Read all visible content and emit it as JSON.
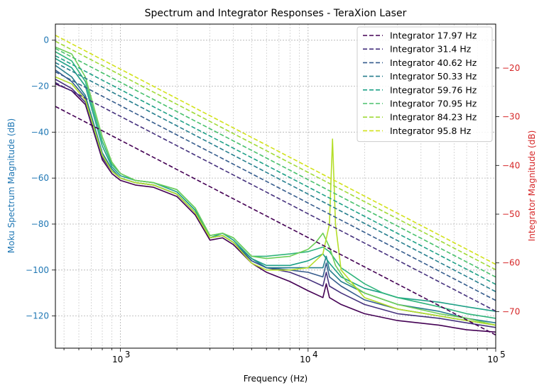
{
  "chart_data": {
    "type": "line",
    "title": "Spectrum and Integrator Responses - TeraXion Laser",
    "xlabel": "Frequency (Hz)",
    "ylabel_left": "Moku Spectrum Magnitude (dB)",
    "ylabel_right": "Integrator Magnitude (dB)",
    "x_scale": "log",
    "xlim": [
      450,
      100000
    ],
    "ylim_left": [
      -134,
      7
    ],
    "ylim_right": [
      -77.5,
      -11
    ],
    "x_tick_labels": [
      "10",
      "10",
      "10"
    ],
    "x_tick_exponents": [
      "3",
      "4",
      "5"
    ],
    "x_tick_values": [
      1000,
      10000,
      100000
    ],
    "y_left_ticks": [
      0,
      -20,
      -40,
      -60,
      -80,
      -100,
      -120
    ],
    "y_left_tick_labels": [
      "0",
      "−20",
      "−40",
      "−60",
      "−80",
      "−100",
      "−120"
    ],
    "y_right_ticks": [
      -20,
      -30,
      -40,
      -50,
      -60,
      -70
    ],
    "y_right_tick_labels": [
      "−20",
      "−30",
      "−40",
      "−50",
      "−60",
      "−70"
    ],
    "grid": true,
    "legend_position": "top-right",
    "colors": {
      "left_axis": "#1f77b4",
      "right_axis": "#d62728"
    },
    "integrator_series": [
      {
        "name": "Integrator 17.97 Hz",
        "color": "#440154",
        "x": [
          450,
          100000
        ],
        "y_db_right": [
          -27.9,
          -74.8
        ]
      },
      {
        "name": "Integrator 31.4 Hz",
        "color": "#46327e",
        "x": [
          450,
          100000
        ],
        "y_db_right": [
          -23.0,
          -69.9
        ]
      },
      {
        "name": "Integrator 40.62 Hz",
        "color": "#365c8d",
        "x": [
          450,
          100000
        ],
        "y_db_right": [
          -20.8,
          -67.7
        ]
      },
      {
        "name": "Integrator 50.33 Hz",
        "color": "#277f8e",
        "x": [
          450,
          100000
        ],
        "y_db_right": [
          -18.9,
          -65.9
        ]
      },
      {
        "name": "Integrator 59.76 Hz",
        "color": "#1fa187",
        "x": [
          450,
          100000
        ],
        "y_db_right": [
          -17.5,
          -64.4
        ]
      },
      {
        "name": "Integrator 70.95 Hz",
        "color": "#4ac16d",
        "x": [
          450,
          100000
        ],
        "y_db_right": [
          -16.0,
          -62.9
        ]
      },
      {
        "name": "Integrator 84.23 Hz",
        "color": "#a0da39",
        "x": [
          450,
          100000
        ],
        "y_db_right": [
          -14.5,
          -61.4
        ]
      },
      {
        "name": "Integrator 95.8 Hz",
        "color": "#d2e21b",
        "x": [
          450,
          100000
        ],
        "y_db_right": [
          -13.3,
          -60.3
        ]
      }
    ],
    "spectrum_series": [
      {
        "color": "#440154",
        "x": [
          450,
          550,
          650,
          800,
          900,
          1000,
          1200,
          1500,
          2000,
          2500,
          3000,
          3500,
          4000,
          5000,
          6000,
          8000,
          10000,
          12000,
          12500,
          13000,
          15000,
          20000,
          30000,
          50000,
          70000,
          100000
        ],
        "y": [
          -19,
          -22,
          -28,
          -52,
          -58,
          -61,
          -63,
          -64,
          -68,
          -76,
          -87,
          -86,
          -89,
          -97,
          -101,
          -105,
          -109,
          -112,
          -106,
          -112,
          -115,
          -119,
          -122,
          -124,
          -126,
          -127
        ]
      },
      {
        "color": "#46327e",
        "x": [
          450,
          550,
          650,
          800,
          900,
          1000,
          1200,
          1500,
          2000,
          2500,
          3000,
          3500,
          4000,
          5000,
          6000,
          8000,
          10000,
          12000,
          12500,
          13000,
          15000,
          20000,
          30000,
          50000,
          70000,
          100000
        ],
        "y": [
          -17,
          -21,
          -27,
          -51,
          -57,
          -60,
          -62,
          -63,
          -67,
          -75,
          -86,
          -85,
          -88,
          -96,
          -99,
          -101,
          -104,
          -107,
          -101,
          -107,
          -110,
          -115,
          -119,
          -121,
          -123,
          -125
        ]
      },
      {
        "color": "#365c8d",
        "x": [
          450,
          550,
          650,
          800,
          900,
          1000,
          1200,
          1500,
          2000,
          2500,
          3000,
          3500,
          4000,
          5000,
          6000,
          8000,
          10000,
          12000,
          12500,
          13000,
          15000,
          20000,
          30000,
          50000,
          70000,
          100000
        ],
        "y": [
          -13,
          -18,
          -25,
          -50,
          -57,
          -60,
          -62,
          -63,
          -67,
          -75,
          -86,
          -85,
          -88,
          -96,
          -99,
          -100,
          -101,
          -103,
          -97,
          -103,
          -107,
          -113,
          -117,
          -120,
          -122,
          -124
        ]
      },
      {
        "color": "#277f8e",
        "x": [
          450,
          550,
          650,
          800,
          900,
          1000,
          1200,
          1500,
          2000,
          2500,
          3000,
          3500,
          4000,
          5000,
          6000,
          8000,
          10000,
          12000,
          12500,
          13000,
          15000,
          20000,
          30000,
          50000,
          70000,
          100000
        ],
        "y": [
          -11,
          -16,
          -24,
          -49,
          -56,
          -60,
          -62,
          -63,
          -67,
          -75,
          -86,
          -85,
          -88,
          -95,
          -99,
          -99,
          -99,
          -99,
          -94,
          -100,
          -105,
          -110,
          -115,
          -118,
          -121,
          -123
        ]
      },
      {
        "color": "#1fa187",
        "x": [
          450,
          550,
          650,
          800,
          900,
          1000,
          1200,
          1500,
          2000,
          2500,
          3000,
          3500,
          4000,
          5000,
          6000,
          8000,
          10000,
          12000,
          13000,
          15000,
          20000,
          25000,
          30000,
          50000,
          70000,
          100000
        ],
        "y": [
          -8,
          -12,
          -20,
          -46,
          -55,
          -59,
          -61,
          -62,
          -66,
          -74,
          -86,
          -84,
          -87,
          -95,
          -98,
          -98,
          -96,
          -93,
          -97,
          -103,
          -108,
          -110,
          -112,
          -114,
          -116,
          -118
        ]
      },
      {
        "color": "#2fb47c",
        "x": [
          450,
          550,
          650,
          800,
          900,
          1000,
          1200,
          1500,
          2000,
          2500,
          3000,
          3500,
          4000,
          5000,
          6000,
          8000,
          10000,
          12000,
          13000,
          15000,
          20000,
          25000,
          30000,
          50000,
          70000,
          100000
        ],
        "y": [
          -5,
          -9,
          -18,
          -44,
          -54,
          -58,
          -61,
          -62,
          -65,
          -73,
          -85,
          -84,
          -86,
          -94,
          -94,
          -93,
          -92,
          -90,
          -92,
          -99,
          -106,
          -110,
          -112,
          -116,
          -119,
          -121
        ]
      },
      {
        "color": "#6ece58",
        "x": [
          450,
          550,
          650,
          800,
          900,
          1000,
          1200,
          1500,
          2000,
          2500,
          3000,
          3500,
          4000,
          5000,
          6000,
          8000,
          10000,
          11000,
          12000,
          13000,
          14000,
          16000,
          20000,
          30000,
          50000,
          70000,
          100000
        ],
        "y": [
          -3,
          -6,
          -16,
          -42,
          -53,
          -58,
          -61,
          -62,
          -65,
          -73,
          -85,
          -84,
          -86,
          -94,
          -95,
          -94,
          -91,
          -88,
          -84,
          -90,
          -98,
          -105,
          -110,
          -115,
          -119,
          -121,
          -124
        ]
      },
      {
        "color": "#b5de2b",
        "x": [
          450,
          550,
          650,
          800,
          900,
          1000,
          1200,
          1500,
          2000,
          2500,
          3000,
          3500,
          4000,
          5000,
          6000,
          8000,
          10000,
          12000,
          13000,
          13500,
          14000,
          15000,
          20000,
          30000,
          50000,
          70000,
          100000
        ],
        "y": [
          -16,
          -19,
          -26,
          -50,
          -57,
          -60,
          -62,
          -63,
          -67,
          -75,
          -86,
          -85,
          -88,
          -97,
          -100,
          -100,
          -99,
          -93,
          -80,
          -43,
          -80,
          -100,
          -112,
          -117,
          -120,
          -122,
          -124
        ]
      }
    ]
  }
}
